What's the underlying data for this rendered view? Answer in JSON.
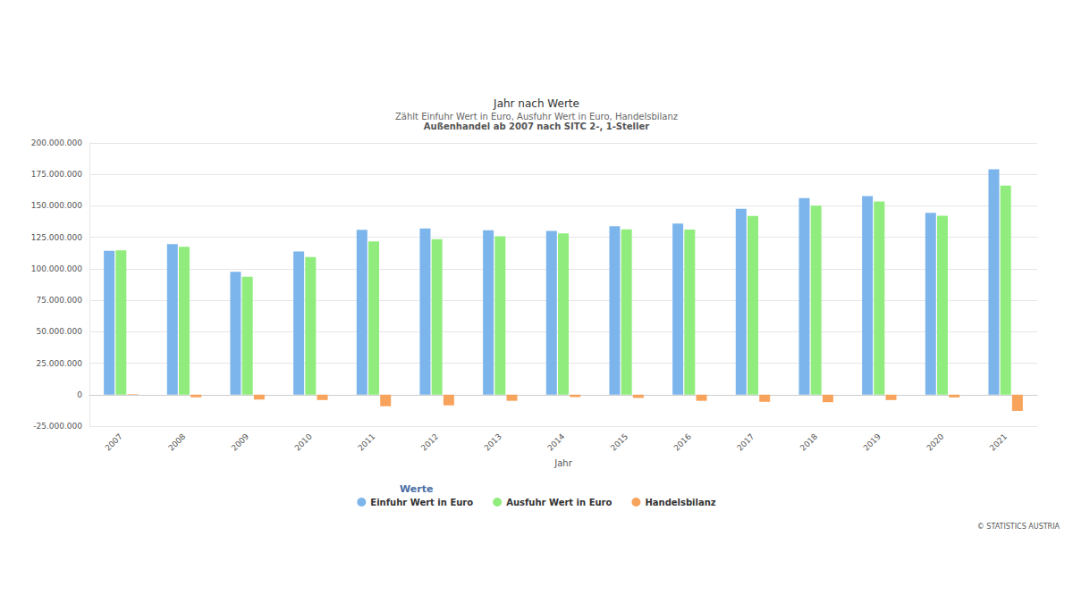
{
  "chart_data": {
    "type": "bar",
    "title": "Jahr nach Werte",
    "subtitle": "Zählt Einfuhr Wert in Euro, Ausfuhr Wert in Euro, Handelsbilanz",
    "subtitle_bold": "Außenhandel ab 2007 nach SITC 2-, 1-Steller",
    "x_label": "Jahr",
    "legend_title": "Werte",
    "credit": "© STATISTICS AUSTRIA",
    "categories": [
      "2007",
      "2008",
      "2009",
      "2010",
      "2011",
      "2012",
      "2013",
      "2014",
      "2015",
      "2016",
      "2017",
      "2018",
      "2019",
      "2020",
      "2021"
    ],
    "series": [
      {
        "name": "Einfuhr Wert in Euro",
        "color": "#7cb5ec",
        "values": [
          114300000,
          119600000,
          97600000,
          113700000,
          131000000,
          132000000,
          130700000,
          130000000,
          133900000,
          136000000,
          147600000,
          156100000,
          157800000,
          144400000,
          179000000
        ]
      },
      {
        "name": "Ausfuhr Wert in Euro",
        "color": "#90ed7d",
        "values": [
          114700000,
          117500000,
          93700000,
          109400000,
          121800000,
          123500000,
          125800000,
          128100000,
          131300000,
          131100000,
          141900000,
          150100000,
          153500000,
          142200000,
          166100000
        ]
      },
      {
        "name": "Handelsbilanz",
        "color": "#f7a35c",
        "values": [
          400000,
          -2100000,
          -3900000,
          -4300000,
          -9200000,
          -8500000,
          -4900000,
          -1900000,
          -2600000,
          -4900000,
          -5700000,
          -6000000,
          -4300000,
          -2200000,
          -12900000
        ]
      }
    ],
    "ylim": [
      -25000000,
      200000000
    ],
    "yticks": [
      {
        "value": -25000000,
        "label": "-25.000.000"
      },
      0,
      {
        "value": 25000000,
        "label": "25.000.000"
      },
      {
        "value": 50000000,
        "label": "50.000.000"
      },
      {
        "value": 75000000,
        "label": "75.000.000"
      },
      {
        "value": 100000000,
        "label": "100.000.000"
      },
      {
        "value": 125000000,
        "label": "125.000.000"
      },
      {
        "value": 150000000,
        "label": "150.000.000"
      },
      {
        "value": 175000000,
        "label": "175.000.000"
      },
      {
        "value": 200000000,
        "label": "200.000.000"
      }
    ],
    "grid": true,
    "legend": "bottom"
  }
}
